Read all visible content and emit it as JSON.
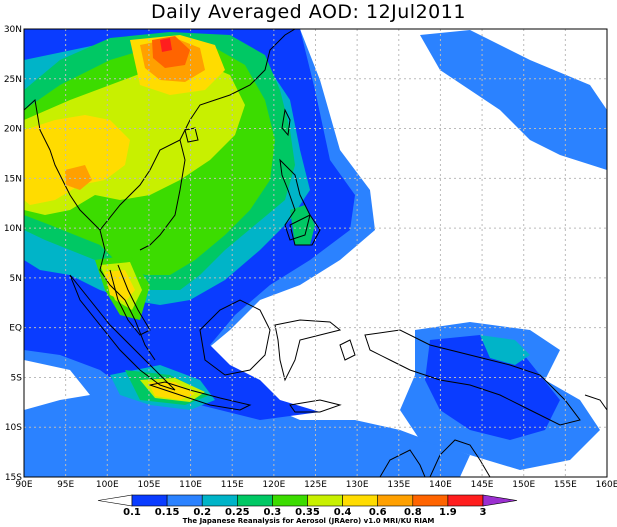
{
  "title": "Daily Averaged AOD: 12Jul2011",
  "credit": "The Japanese Reanalysis for Aerosol (JRAero) v1.0 MRI/KU RIAM",
  "map": {
    "lon_ticks": [
      "90E",
      "95E",
      "100E",
      "105E",
      "110E",
      "115E",
      "120E",
      "125E",
      "130E",
      "135E",
      "140E",
      "145E",
      "150E",
      "155E",
      "160E"
    ],
    "lat_ticks": [
      "30N",
      "25N",
      "20N",
      "15N",
      "10N",
      "5N",
      "EQ",
      "5S",
      "10S",
      "15S"
    ]
  },
  "legend": {
    "labels": [
      "0.1",
      "0.15",
      "0.2",
      "0.25",
      "0.3",
      "0.35",
      "0.4",
      "0.6",
      "0.8",
      "1.9",
      "3"
    ],
    "colors": [
      "#0a3cff",
      "#2b82ff",
      "#00b4c8",
      "#00c864",
      "#3cdc00",
      "#c8f000",
      "#ffdc00",
      "#ffa000",
      "#ff6400",
      "#ff1e1e"
    ],
    "low_color": "#ffffff",
    "high_color": "#9b2fd0"
  },
  "colors": {
    "land": "#000000",
    "grid": "#bbbbbb"
  }
}
